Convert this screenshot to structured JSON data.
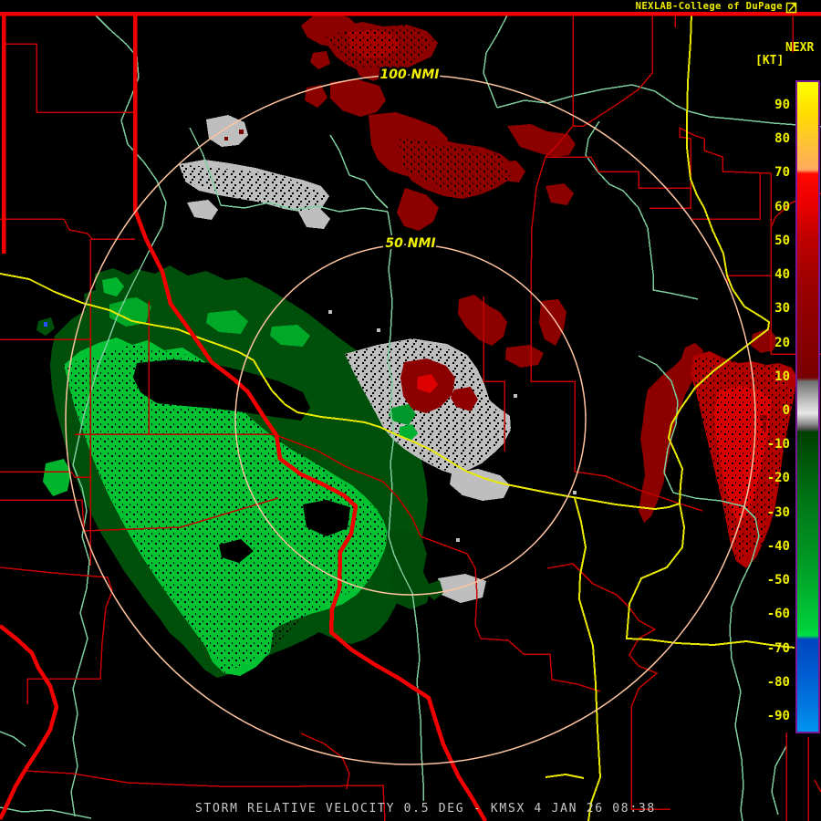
{
  "header": {
    "brand": "NEXLAB-College of DuPage",
    "link_icon": "external-link-icon"
  },
  "scale": {
    "title": "NEXR",
    "units": "[KT]",
    "ticks": [
      90,
      80,
      70,
      60,
      50,
      40,
      30,
      20,
      10,
      0,
      -10,
      -20,
      -30,
      -40,
      -50,
      -60,
      -70,
      -80,
      -90
    ]
  },
  "map": {
    "ring_labels": {
      "outer": "100 NMI",
      "inner": "50 NMI"
    }
  },
  "footer": {
    "title": "STORM RELATIVE VELOCITY 0.5 DEG - KMSX 4 JAN 26 08:38"
  },
  "product": {
    "name": "STORM RELATIVE VELOCITY",
    "elevation_angle": "0.5 DEG",
    "station": "KMSX",
    "date": "4 JAN 26",
    "time": "08:38"
  },
  "colors": {
    "background": "#000000",
    "range_ring": "#FFC4A0",
    "county_line": "#C40000",
    "state_line": "#F00000",
    "highway": "#E8E800",
    "river": "#7CCC9C",
    "label_yellow": "#F0F000",
    "title_gray": "#C8C8C8",
    "scale_border": "#781896",
    "velocity_toward_green": "#00C232",
    "velocity_away_red": "#8C0000",
    "velocity_near_zero_gray": "#BEBEBE"
  }
}
